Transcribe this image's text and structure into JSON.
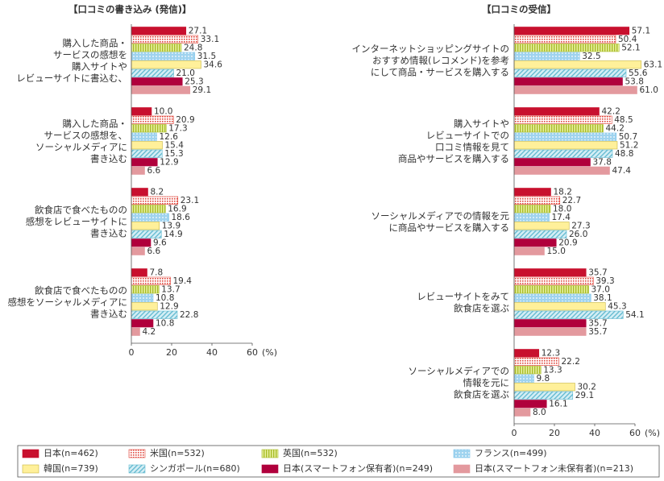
{
  "chart_data": [
    {
      "type": "hbar",
      "title": "【口コミの書き込み (発信)】",
      "unit": "(%)",
      "categories": [
        [
          "購入した商品・",
          "サービスの感想を",
          "購入サイトや",
          "レビューサイトに書込む、"
        ],
        [
          "購入した商品・",
          "サービスの感想を、",
          "ソーシャルメディアに",
          "書き込む"
        ],
        [
          "飲食店で食べたものの",
          "感想をレビューサイトに",
          "書き込む"
        ],
        [
          "飲食店で食べたものの",
          "感想をソーシャルメディアに",
          "書き込む"
        ]
      ],
      "xlim": [
        0,
        60
      ],
      "xticks": [
        0,
        20,
        40,
        60
      ],
      "series": [
        {
          "name": "日本(n=462)",
          "color": "#c8102e",
          "pattern": "solid",
          "values": [
            27.1,
            10.0,
            8.2,
            7.8
          ],
          "value_labels": [
            "27.1",
            "10.0",
            "8.2",
            "7.8"
          ]
        },
        {
          "name": "米国(n=532)",
          "color": "#e0463c",
          "pattern": "dots-red",
          "values": [
            33.1,
            20.9,
            23.1,
            19.4
          ],
          "value_labels": [
            "33.1",
            "20.9",
            "23.1",
            "19.4"
          ]
        },
        {
          "name": "英国(n=532)",
          "color": "#a8bc28",
          "pattern": "vstripe",
          "values": [
            24.8,
            17.3,
            16.9,
            13.7
          ],
          "value_labels": [
            "24.8",
            "17.3",
            "16.9",
            "13.7"
          ]
        },
        {
          "name": "フランス(n=499)",
          "color": "#7cc3ea",
          "pattern": "dots-blue",
          "values": [
            31.5,
            12.6,
            18.6,
            10.8
          ],
          "value_labels": [
            "31.5",
            "12.6",
            "18.6",
            "10.8"
          ]
        },
        {
          "name": "韓国(n=739)",
          "color": "#fff09a",
          "pattern": "solid",
          "values": [
            34.6,
            15.4,
            13.9,
            12.9
          ],
          "value_labels": [
            "34.6",
            "15.4",
            "13.9",
            "12.9"
          ]
        },
        {
          "name": "シンガポール(n=680)",
          "color": "#5fb8cf",
          "pattern": "hatch",
          "values": [
            21.0,
            15.3,
            14.9,
            22.8
          ],
          "value_labels": [
            "21.0",
            "15.3",
            "14.9",
            "22.8"
          ]
        },
        {
          "name": "日本(スマートフォン保有者)(n=249)",
          "color": "#b0003c",
          "pattern": "solid",
          "values": [
            25.3,
            12.9,
            9.6,
            10.8
          ],
          "value_labels": [
            "25.3",
            "12.9",
            "9.6",
            "10.8"
          ]
        },
        {
          "name": "日本(スマートフォン未保有者)(n=213)",
          "color": "#e3999e",
          "pattern": "solid",
          "values": [
            29.1,
            6.6,
            6.6,
            4.2
          ],
          "value_labels": [
            "29.1",
            "6.6",
            "6.6",
            "4.2"
          ]
        }
      ]
    },
    {
      "type": "hbar",
      "title": "【口コミの受信】",
      "unit": "(%)",
      "categories": [
        [
          "インターネットショッピングサイトの",
          "おすすめ情報(レコメンド)を参考",
          "にして商品・サービスを購入する"
        ],
        [
          "購入サイトや",
          "レビューサイトでの",
          "口コミ情報を見て",
          "商品やサービスを購入する"
        ],
        [
          "ソーシャルメディアでの情報を元",
          "に商品やサービスを購入する"
        ],
        [
          "レビューサイトをみて",
          "飲食店を選ぶ"
        ],
        [
          "ソーシャルメディアでの",
          "情報を元に",
          "飲食店を選ぶ"
        ]
      ],
      "xlim": [
        0,
        60
      ],
      "xticks": [
        0,
        20,
        40,
        60
      ],
      "series": [
        {
          "name": "日本(n=462)",
          "color": "#c8102e",
          "pattern": "solid",
          "values": [
            57.1,
            42.2,
            18.2,
            35.7,
            12.3
          ],
          "value_labels": [
            "57.1",
            "42.2",
            "18.2",
            "35.7",
            "12.3"
          ]
        },
        {
          "name": "米国(n=532)",
          "color": "#e0463c",
          "pattern": "dots-red",
          "values": [
            50.4,
            48.5,
            22.7,
            39.3,
            22.2
          ],
          "value_labels": [
            "50.4",
            "48.5",
            "22.7",
            "39.3",
            "22.2"
          ]
        },
        {
          "name": "英国(n=532)",
          "color": "#a8bc28",
          "pattern": "vstripe",
          "values": [
            52.1,
            44.2,
            18.0,
            37.0,
            13.3
          ],
          "value_labels": [
            "52.1",
            "44.2",
            "18.0",
            "37.0",
            "13.3"
          ]
        },
        {
          "name": "フランス(n=499)",
          "color": "#7cc3ea",
          "pattern": "dots-blue",
          "values": [
            32.5,
            50.7,
            17.4,
            38.1,
            9.8
          ],
          "value_labels": [
            "32.5",
            "50.7",
            "17.4",
            "38.1",
            "9.8"
          ]
        },
        {
          "name": "韓国(n=739)",
          "color": "#fff09a",
          "pattern": "solid",
          "values": [
            63.1,
            51.2,
            27.3,
            45.3,
            30.2
          ],
          "value_labels": [
            "63.1",
            "51.2",
            "27.3",
            "45.3",
            "30.2"
          ]
        },
        {
          "name": "シンガポール(n=680)",
          "color": "#5fb8cf",
          "pattern": "hatch",
          "values": [
            55.6,
            48.8,
            26.0,
            54.1,
            29.1
          ],
          "value_labels": [
            "55.6",
            "48.8",
            "26.0",
            "54.1",
            "29.1"
          ]
        },
        {
          "name": "日本(スマートフォン保有者)(n=249)",
          "color": "#b0003c",
          "pattern": "solid",
          "values": [
            53.8,
            37.8,
            20.9,
            35.7,
            16.1
          ],
          "value_labels": [
            "53.8",
            "37.8",
            "20.9",
            "35.7",
            "16.1"
          ]
        },
        {
          "name": "日本(スマートフォン未保有者)(n=213)",
          "color": "#e3999e",
          "pattern": "solid",
          "values": [
            61.0,
            47.4,
            15.0,
            35.7,
            8.0
          ],
          "value_labels": [
            "61.0",
            "47.4",
            "15.0",
            "35.7",
            "8.0"
          ]
        }
      ]
    }
  ]
}
